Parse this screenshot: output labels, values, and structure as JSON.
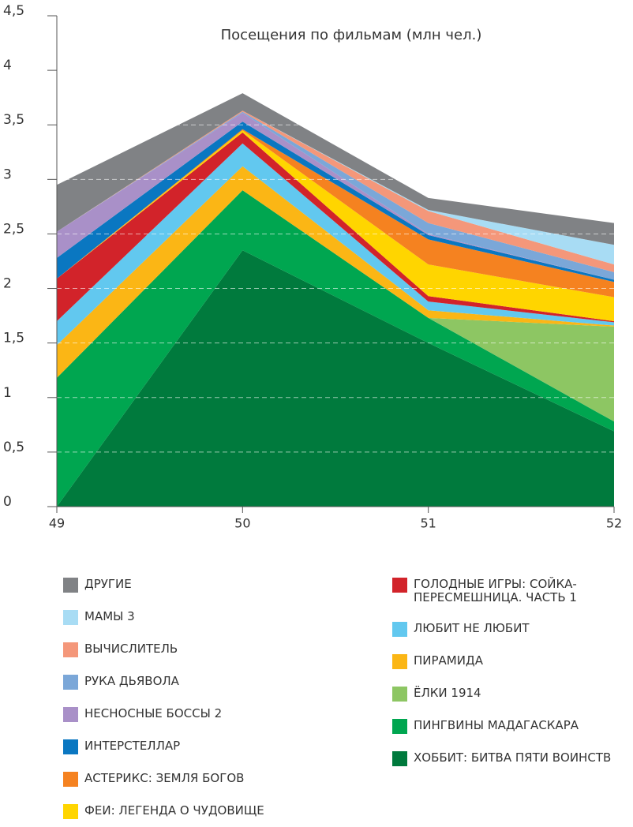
{
  "chart_data": {
    "type": "stacked_area",
    "title": "Посещения по фильмам (млн чел.)",
    "x": [
      49,
      50,
      51,
      52
    ],
    "xlim": [
      49,
      52
    ],
    "xticks": [
      49,
      50,
      51,
      52
    ],
    "ylim": [
      0,
      4.5
    ],
    "yticks": [
      0,
      {
        "value": 0.5,
        "label": "0,5"
      },
      1,
      {
        "value": 1.5,
        "label": "1,5"
      },
      2,
      {
        "value": 2.5,
        "label": "2,5"
      },
      3,
      {
        "value": 3.5,
        "label": "3,5"
      },
      4,
      {
        "value": 4.5,
        "label": "4,5"
      }
    ],
    "grid": true,
    "series": [
      {
        "name": "ДРУГИЕ",
        "color": "#808285",
        "values": [
          0.43,
          0.16,
          0.11,
          0.2
        ]
      },
      {
        "name": "МАМЫ 3",
        "color": "#a8dcf4",
        "values": [
          0,
          0,
          0.01,
          0.18
        ]
      },
      {
        "name": "ВЫЧИСЛИТЕЛЬ",
        "color": "#f4977a",
        "values": [
          0,
          0.01,
          0.11,
          0.07
        ]
      },
      {
        "name": "РУКА ДЬЯВОЛА",
        "color": "#7ba7d8",
        "values": [
          0,
          0.01,
          0.1,
          0.07
        ]
      },
      {
        "name": "НЕСНОСНЫЕ БОССЫ 2",
        "color": "#a990c8",
        "values": [
          0.24,
          0.08,
          0.01,
          0
        ]
      },
      {
        "name": "ИНТЕРСТЕЛЛАР",
        "color": "#0a77c1",
        "values": [
          0.19,
          0.07,
          0.04,
          0.02
        ]
      },
      {
        "name": "АСТЕРИКС: ЗЕМЛЯ БОГОВ",
        "color": "#f58220",
        "values": [
          0,
          0.01,
          0.23,
          0.14
        ]
      },
      {
        "name": "ФЕИ: ЛЕГЕНДА О ЧУДОВИЩЕ",
        "color": "#ffd500",
        "values": [
          0,
          0.02,
          0.29,
          0.22
        ]
      },
      {
        "name": "ГОЛОДНЫЕ ИГРЫ: СОЙКА-ПЕРЕСМЕШНИЦА. ЧАСТЬ 1",
        "color": "#d2232a",
        "values": [
          0.39,
          0.1,
          0.05,
          0.01
        ]
      },
      {
        "name": "ЛЮБИТ НЕ ЛЮБИТ",
        "color": "#62c8ef",
        "values": [
          0.22,
          0.21,
          0.08,
          0.03
        ]
      },
      {
        "name": "ПИРАМИДА",
        "color": "#fbb615",
        "values": [
          0.3,
          0.22,
          0.07,
          0.01
        ]
      },
      {
        "name": "ЁЛКИ 1914",
        "color": "#8dc663",
        "values": [
          0,
          0,
          0,
          0.87
        ]
      },
      {
        "name": "ПИНГВИНЫ МАДАГАСКАРА",
        "color": "#00a650",
        "values": [
          1.18,
          0.55,
          0.23,
          0.09
        ]
      },
      {
        "name": "ХОББИТ: БИТВА ПЯТИ ВОИНСТВ",
        "color": "#007a3d",
        "values": [
          0,
          2.35,
          1.5,
          0.69
        ]
      }
    ]
  }
}
